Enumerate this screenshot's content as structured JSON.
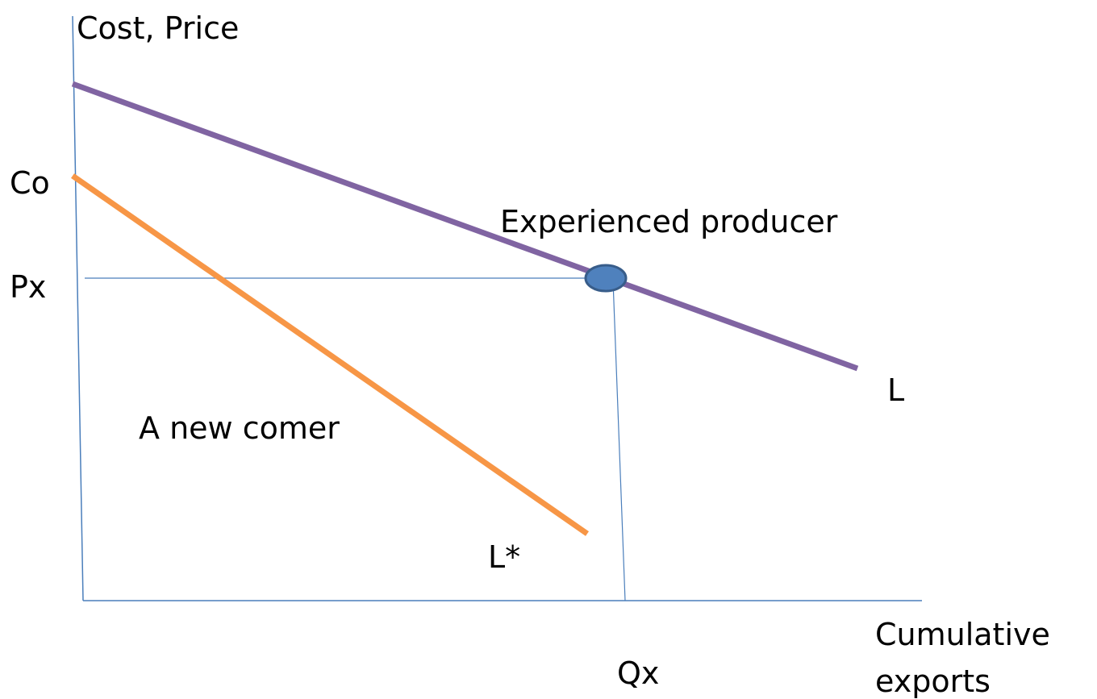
{
  "axes": {
    "y_label": "Cost, Price",
    "x_label": [
      "Cumulative",
      "exports"
    ]
  },
  "y_marks": {
    "start_cost": "Co",
    "price": "Px"
  },
  "x_marks": {
    "quantity": "Qx"
  },
  "curves": [
    {
      "label": "L",
      "annotation": "Experienced producer"
    },
    {
      "label": "L*",
      "annotation": "A new comer"
    }
  ]
}
